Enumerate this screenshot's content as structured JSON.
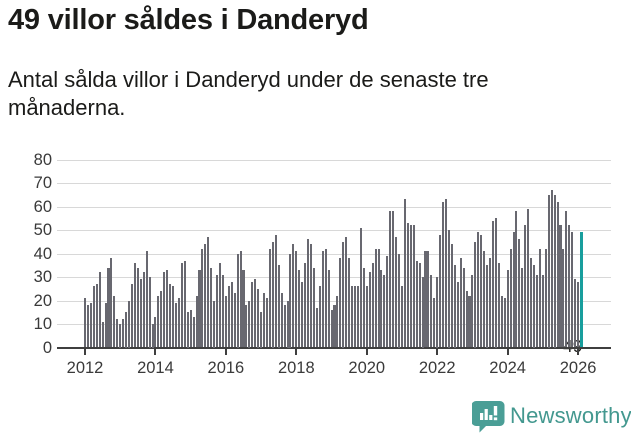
{
  "header": {
    "title": "49 villor såldes i Danderyd",
    "subtitle": "Antal sålda villor i Danderyd under de senaste tre månaderna."
  },
  "chart_data": {
    "type": "bar",
    "title": "49 villor såldes i Danderyd",
    "description": "Antal sålda villor i Danderyd, rullande tremånadersperioder, månadsvis",
    "x_start": "2012-01",
    "x_end": "2026-02",
    "frequency": "monthly",
    "values": [
      21,
      18,
      19,
      26,
      27,
      32,
      11,
      19,
      34,
      38,
      22,
      12,
      10,
      12,
      15,
      20,
      27,
      36,
      34,
      29,
      32,
      41,
      30,
      10,
      13,
      22,
      24,
      32,
      33,
      27,
      26,
      19,
      21,
      36,
      37,
      15,
      16,
      13,
      22,
      33,
      42,
      44,
      47,
      34,
      20,
      31,
      36,
      31,
      22,
      26,
      28,
      23,
      40,
      41,
      33,
      18,
      20,
      28,
      29,
      25,
      15,
      23,
      21,
      42,
      45,
      48,
      35,
      23,
      18,
      20,
      40,
      44,
      41,
      33,
      28,
      36,
      46,
      44,
      34,
      17,
      26,
      41,
      42,
      33,
      16,
      18,
      22,
      38,
      45,
      47,
      38,
      26,
      26,
      26,
      51,
      34,
      26,
      32,
      36,
      42,
      42,
      33,
      31,
      39,
      58,
      58,
      47,
      40,
      26,
      63,
      53,
      52,
      52,
      37,
      36,
      30,
      41,
      41,
      31,
      21,
      30,
      48,
      62,
      63,
      50,
      44,
      35,
      28,
      38,
      34,
      24,
      22,
      31,
      45,
      49,
      48,
      41,
      35,
      38,
      54,
      55,
      36,
      22,
      21,
      33,
      42,
      49,
      58,
      46,
      34,
      52,
      59,
      38,
      35,
      31,
      42,
      31,
      42,
      65,
      67,
      65,
      62,
      52,
      42,
      58,
      52,
      49,
      29,
      28,
      49
    ],
    "highlight": {
      "index": 169,
      "value": 49,
      "annotation": "49"
    },
    "ylim": [
      0,
      80
    ],
    "y_ticks": [
      0,
      10,
      20,
      30,
      40,
      50,
      60,
      70,
      80
    ],
    "x_tick_labels": [
      "2012",
      "2014",
      "2016",
      "2018",
      "2020",
      "2022",
      "2024",
      "2026"
    ],
    "legend": false,
    "grid": true,
    "colors": {
      "bar": "#686870",
      "highlight": "#189e9d",
      "gridline": "#d8d8d8",
      "axis": "#3f3f3f",
      "tick_label": "#3a3a3a"
    }
  },
  "footer": {
    "brand": "Newsworthy",
    "brand_color": "#43988f",
    "logo_icon": "speech-bubble-bar-chart-icon",
    "logo_color": "#4a9e96"
  }
}
